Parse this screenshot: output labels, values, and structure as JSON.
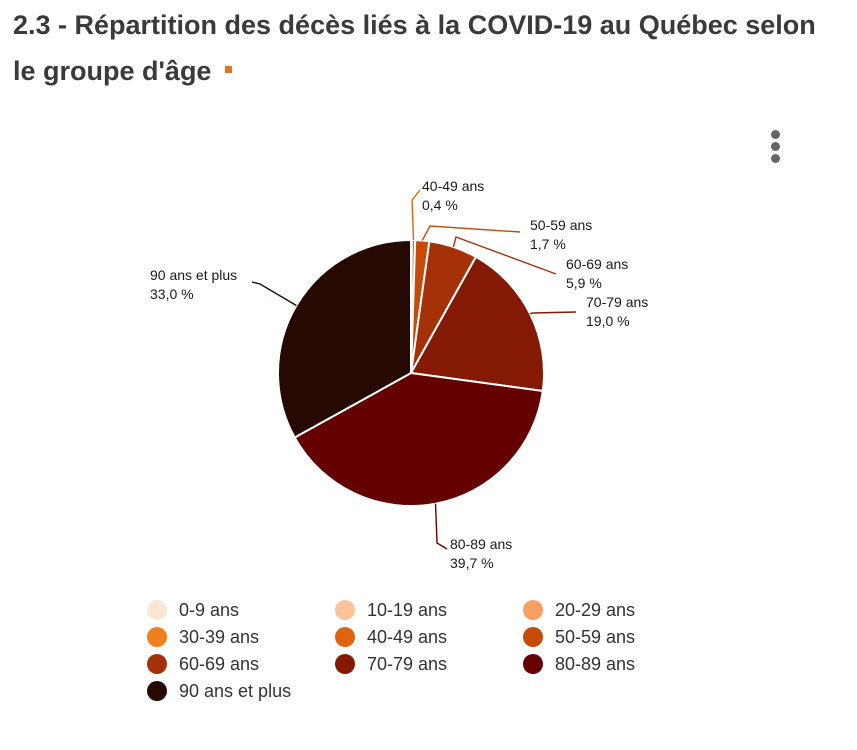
{
  "title": "2.3 - Répartition des décès liés à la COVID-19 au Québec selon le groupe d'âge",
  "chart_data": {
    "type": "pie",
    "title": "2.3 - Répartition des décès liés à la COVID-19 au Québec selon le groupe d'âge",
    "categories": [
      "0-9 ans",
      "10-19 ans",
      "20-29 ans",
      "30-39 ans",
      "40-49 ans",
      "50-59 ans",
      "60-69 ans",
      "70-79 ans",
      "80-89 ans",
      "90 ans et plus"
    ],
    "values": [
      0.0,
      0.0,
      0.0,
      0.1,
      0.4,
      1.7,
      5.9,
      19.0,
      39.7,
      33.0
    ],
    "colors": [
      "#fde5d2",
      "#fbc39b",
      "#f7a062",
      "#f07f1e",
      "#e0640f",
      "#c64a0a",
      "#a43108",
      "#841a04",
      "#650000",
      "#260903"
    ],
    "data_labels": [
      {
        "name": "40-49 ans",
        "value": "0,4 %"
      },
      {
        "name": "50-59 ans",
        "value": "1,7 %"
      },
      {
        "name": "60-69 ans",
        "value": "5,9 %"
      },
      {
        "name": "70-79 ans",
        "value": "19,0 %"
      },
      {
        "name": "80-89 ans",
        "value": "39,7 %"
      },
      {
        "name": "90 ans et plus",
        "value": "33,0 %"
      }
    ],
    "legend_position": "bottom"
  },
  "legend": [
    "0-9 ans",
    "10-19 ans",
    "20-29 ans",
    "30-39 ans",
    "40-49 ans",
    "50-59 ans",
    "60-69 ans",
    "70-79 ans",
    "80-89 ans",
    "90 ans et plus"
  ],
  "menu_icon": "more-vertical-icon"
}
